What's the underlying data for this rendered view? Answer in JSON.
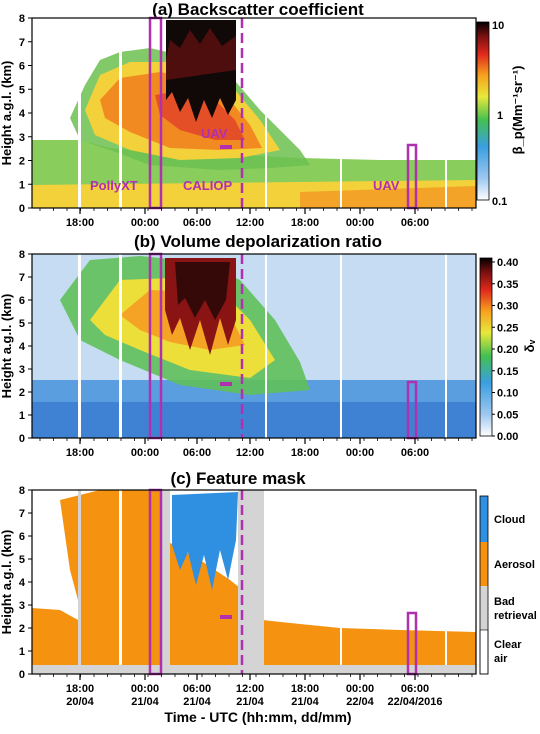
{
  "chart_data": [
    {
      "type": "heatmap",
      "title": "(a) Backscatter coefficient",
      "ylabel": "Height a.g.l. (km)",
      "ylim": [
        0,
        8
      ],
      "yticks": [
        "0",
        "1",
        "2",
        "3",
        "4",
        "5",
        "6",
        "7",
        "8"
      ],
      "xticks": [
        "18:00",
        "00:00",
        "06:00",
        "12:00",
        "18:00",
        "00:00",
        "06:00"
      ],
      "colorbar": {
        "label": "β_p(Mm⁻¹sr⁻¹)",
        "scale": "log",
        "range": [
          0.1,
          10
        ],
        "ticks": [
          "10",
          "1",
          "0.1"
        ]
      },
      "annotations": [
        "PollyXT",
        "CALIOP",
        "UAV",
        "UAV"
      ]
    },
    {
      "type": "heatmap",
      "title": "(b) Volume depolarization ratio",
      "ylabel": "Height a.g.l. (km)",
      "ylim": [
        0,
        8
      ],
      "yticks": [
        "0",
        "1",
        "2",
        "3",
        "4",
        "5",
        "6",
        "7",
        "8"
      ],
      "xticks": [
        "18:00",
        "00:00",
        "06:00",
        "12:00",
        "18:00",
        "00:00",
        "06:00"
      ],
      "colorbar": {
        "label": "δ_v",
        "range": [
          0.0,
          0.4
        ],
        "ticks": [
          "0.40",
          "0.35",
          "0.30",
          "0.25",
          "0.20",
          "0.15",
          "0.10",
          "0.05",
          "0.00"
        ]
      }
    },
    {
      "type": "heatmap",
      "title": "(c) Feature mask",
      "ylabel": "Height a.g.l. (km)",
      "xlabel": "Time - UTC (hh:mm, dd/mm)",
      "ylim": [
        0,
        8
      ],
      "yticks": [
        "0",
        "1",
        "2",
        "3",
        "4",
        "5",
        "6",
        "7",
        "8"
      ],
      "xticks": [
        "18:00\n20/04",
        "00:00\n21/04",
        "06:00\n21/04",
        "12:00\n21/04",
        "18:00\n21/04",
        "00:00\n22/04",
        "06:00\n22/04/2016"
      ],
      "legend": [
        {
          "label": "Cloud",
          "color": "#2f8fe0"
        },
        {
          "label": "Aerosol",
          "color": "#f5920f"
        },
        {
          "label": "Bad retrieval",
          "color": "#d4d4d4"
        },
        {
          "label": "Clear air",
          "color": "#ffffff"
        }
      ]
    }
  ],
  "panel_a": {
    "title": "(a) Backscatter coefficient",
    "ylabel": "Height a.g.l. (km)",
    "ann_pollyxt": "PollyXT",
    "ann_caliop": "CALIOP",
    "ann_uav1": "UAV",
    "ann_uav2": "UAV",
    "cb_label": "β_p(Mm⁻¹sr⁻¹)",
    "cb_ticks": [
      "10",
      "1",
      "0.1"
    ]
  },
  "panel_b": {
    "title": "(b) Volume depolarization ratio",
    "ylabel": "Height a.g.l. (km)",
    "cb_label": "δᵥ",
    "cb_ticks": [
      "0.40",
      "0.35",
      "0.30",
      "0.25",
      "0.20",
      "0.15",
      "0.10",
      "0.05",
      "0.00"
    ]
  },
  "panel_c": {
    "title": "(c) Feature mask",
    "ylabel": "Height a.g.l. (km)",
    "xlabel": "Time - UTC (hh:mm, dd/mm)",
    "legend": [
      "Cloud",
      "Aerosol",
      "Bad",
      "retrieval",
      "Clear",
      "air"
    ],
    "date_ticks": [
      "20/04",
      "21/04",
      "21/04",
      "21/04",
      "21/04",
      "22/04",
      "22/04/2016"
    ]
  },
  "yticks": [
    "0",
    "1",
    "2",
    "3",
    "4",
    "5",
    "6",
    "7",
    "8"
  ],
  "xticks": [
    "18:00",
    "00:00",
    "06:00",
    "12:00",
    "18:00",
    "00:00",
    "06:00"
  ],
  "colors": {
    "marker": "#b030b0",
    "cloud": "#2f8fe0",
    "aerosol": "#f5920f",
    "bad": "#d4d4d4"
  }
}
